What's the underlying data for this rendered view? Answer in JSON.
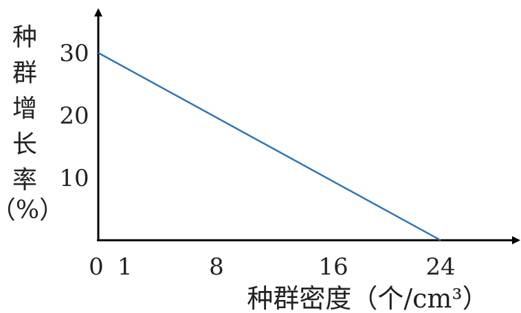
{
  "chart_data": {
    "type": "line",
    "title": "",
    "xlabel": "种群密度（个/cm³）",
    "ylabel": "种群增长率（%）",
    "ylabel_chars": [
      "种",
      "群",
      "增",
      "长",
      "率"
    ],
    "ylabel_unit": "（%）",
    "x_ticks": [
      {
        "value": 0,
        "label": "0"
      },
      {
        "value": 1,
        "label": "1"
      },
      {
        "value": 8,
        "label": "8"
      },
      {
        "value": 16,
        "label": "16"
      },
      {
        "value": 24,
        "label": "24"
      }
    ],
    "y_ticks": [
      {
        "value": 10,
        "label": "10"
      },
      {
        "value": 20,
        "label": "20"
      },
      {
        "value": 30,
        "label": "30"
      }
    ],
    "xlim": [
      0,
      29
    ],
    "ylim": [
      0,
      35
    ],
    "series": [
      {
        "x": [
          0,
          24
        ],
        "y": [
          30,
          0
        ],
        "color": "#2e75b6"
      }
    ],
    "grid": false,
    "legend": "none"
  }
}
